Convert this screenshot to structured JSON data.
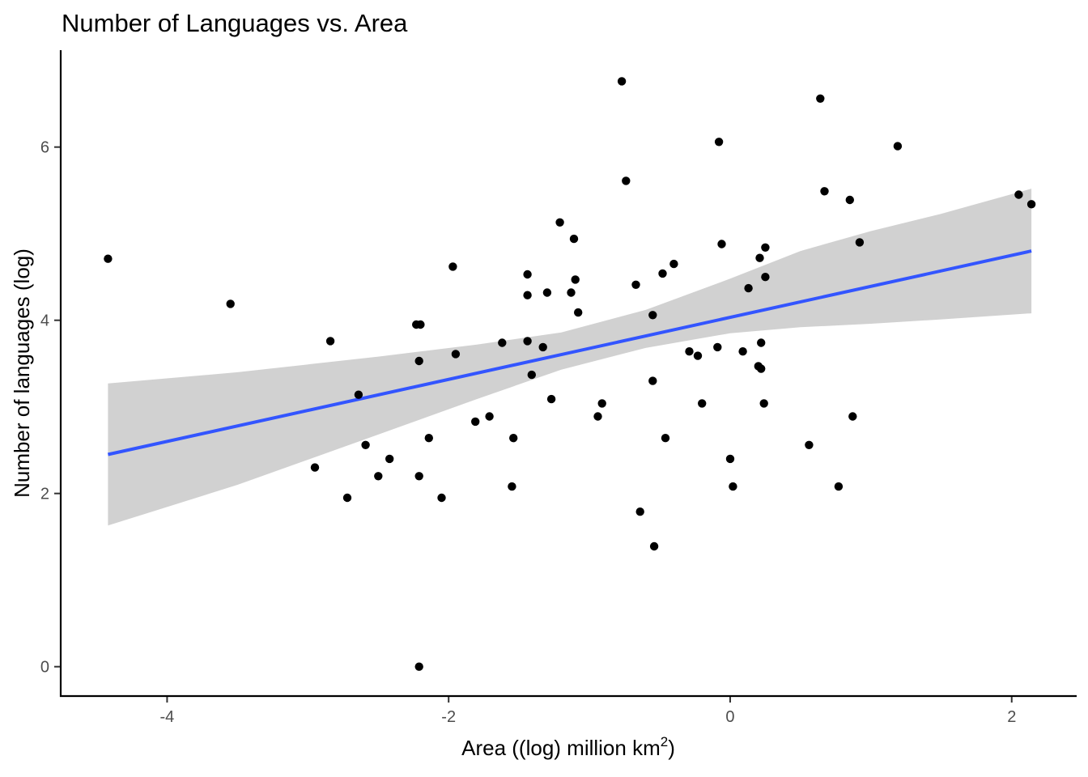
{
  "chart_data": {
    "type": "scatter",
    "title": "Number of Languages vs. Area",
    "xlabel": {
      "base": "Area ((log) million km",
      "superscript": "2",
      "suffix": ")"
    },
    "ylabel": "Number of languages (log)",
    "xlim": [
      -4.75,
      2.45
    ],
    "ylim": [
      -0.33,
      7.1
    ],
    "x_ticks": [
      -4,
      -2,
      0,
      2
    ],
    "x_tick_labels": [
      "-4",
      "-2",
      "0",
      "2"
    ],
    "y_ticks": [
      0,
      2,
      4,
      6
    ],
    "y_tick_labels": [
      "0",
      "2",
      "4",
      "6"
    ],
    "grid": false,
    "legend": "none",
    "colors": {
      "points": "#000000",
      "fit_line": "#3355ff",
      "confidence_band": "#bdbdbd"
    },
    "points": [
      [
        -4.42,
        4.71
      ],
      [
        -3.55,
        4.19
      ],
      [
        -2.95,
        2.3
      ],
      [
        -2.84,
        3.76
      ],
      [
        -2.72,
        1.95
      ],
      [
        -2.64,
        3.14
      ],
      [
        -2.59,
        2.56
      ],
      [
        -2.5,
        2.2
      ],
      [
        -2.42,
        2.4
      ],
      [
        -2.23,
        3.95
      ],
      [
        -2.2,
        3.95
      ],
      [
        -2.21,
        3.53
      ],
      [
        -2.21,
        2.2
      ],
      [
        -2.21,
        0.0
      ],
      [
        -2.14,
        2.64
      ],
      [
        -2.05,
        1.95
      ],
      [
        -1.97,
        4.62
      ],
      [
        -1.95,
        3.61
      ],
      [
        -1.81,
        2.83
      ],
      [
        -1.71,
        2.89
      ],
      [
        -1.62,
        3.74
      ],
      [
        -1.55,
        2.08
      ],
      [
        -1.54,
        2.64
      ],
      [
        -1.44,
        4.53
      ],
      [
        -1.44,
        4.29
      ],
      [
        -1.44,
        3.76
      ],
      [
        -1.41,
        3.37
      ],
      [
        -1.33,
        3.69
      ],
      [
        -1.3,
        4.32
      ],
      [
        -1.27,
        3.09
      ],
      [
        -1.21,
        5.13
      ],
      [
        -1.13,
        4.32
      ],
      [
        -1.11,
        4.94
      ],
      [
        -1.1,
        4.47
      ],
      [
        -1.08,
        4.09
      ],
      [
        -0.94,
        2.89
      ],
      [
        -0.91,
        3.04
      ],
      [
        -0.77,
        6.76
      ],
      [
        -0.74,
        5.61
      ],
      [
        -0.67,
        4.41
      ],
      [
        -0.64,
        1.79
      ],
      [
        -0.55,
        4.06
      ],
      [
        -0.55,
        3.3
      ],
      [
        -0.54,
        1.39
      ],
      [
        -0.48,
        4.54
      ],
      [
        -0.46,
        2.64
      ],
      [
        -0.4,
        4.65
      ],
      [
        -0.29,
        3.64
      ],
      [
        -0.23,
        3.59
      ],
      [
        -0.2,
        3.04
      ],
      [
        -0.09,
        3.69
      ],
      [
        -0.08,
        6.06
      ],
      [
        -0.06,
        4.88
      ],
      [
        0.0,
        2.4
      ],
      [
        0.02,
        2.08
      ],
      [
        0.09,
        3.64
      ],
      [
        0.13,
        4.37
      ],
      [
        0.2,
        3.47
      ],
      [
        0.21,
        4.72
      ],
      [
        0.22,
        3.44
      ],
      [
        0.22,
        3.74
      ],
      [
        0.24,
        3.04
      ],
      [
        0.25,
        4.5
      ],
      [
        0.25,
        4.84
      ],
      [
        0.56,
        2.56
      ],
      [
        0.64,
        6.56
      ],
      [
        0.67,
        5.49
      ],
      [
        0.77,
        2.08
      ],
      [
        0.85,
        5.39
      ],
      [
        0.87,
        2.89
      ],
      [
        0.92,
        4.9
      ],
      [
        1.19,
        6.01
      ],
      [
        2.05,
        5.45
      ],
      [
        2.14,
        5.34
      ]
    ],
    "fit": {
      "x": [
        -4.42,
        2.14
      ],
      "y": [
        2.45,
        4.8
      ]
    },
    "band": {
      "x": [
        -4.42,
        -3.5,
        -2.5,
        -1.8,
        -1.2,
        -0.6,
        0.0,
        0.5,
        1.0,
        1.5,
        2.14
      ],
      "upper": [
        3.27,
        3.4,
        3.58,
        3.72,
        3.86,
        4.12,
        4.48,
        4.8,
        5.03,
        5.23,
        5.52
      ],
      "lower": [
        1.63,
        2.1,
        2.68,
        3.09,
        3.43,
        3.68,
        3.85,
        3.92,
        3.96,
        4.01,
        4.08
      ]
    }
  }
}
